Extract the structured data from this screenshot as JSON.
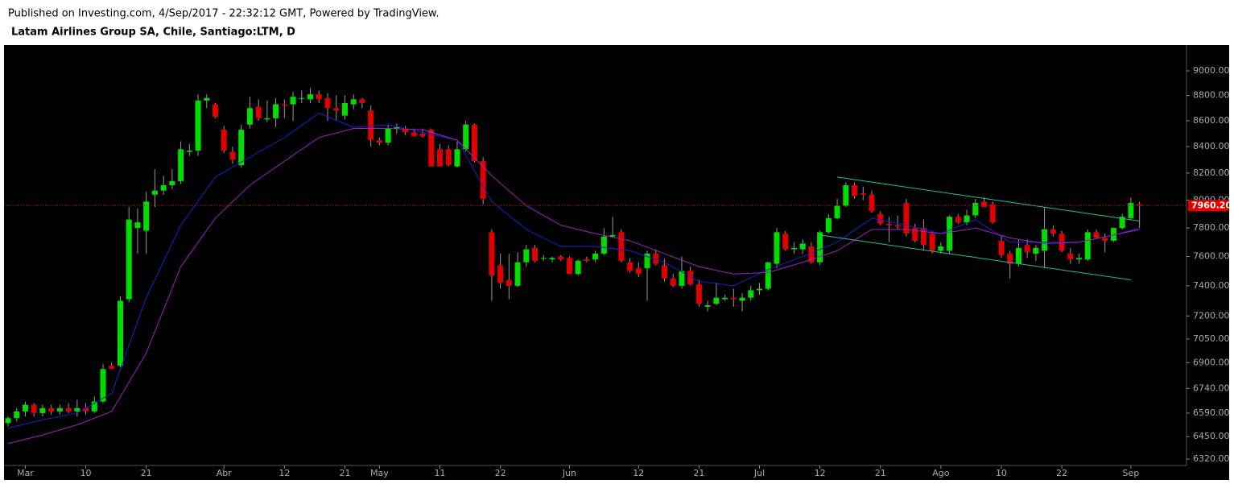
{
  "chart_data": {
    "type": "candlestick",
    "subtitle": "Published on Investing.com, 4/Sep/2017 - 22:32:12 GMT, Powered by TradingView.",
    "title": "Latam Airlines Group SA, Chile, Santiago:LTM, D",
    "log_scale": true,
    "up_color": "#00dd00",
    "down_color": "#e00000",
    "ylim": [
      6283,
      9207
    ],
    "yticks": [
      {
        "value": 9000,
        "label": "9000.00"
      },
      {
        "value": 8800,
        "label": "8800.00"
      },
      {
        "value": 8600,
        "label": "8600.00"
      },
      {
        "value": 8400,
        "label": "8400.00"
      },
      {
        "value": 8200,
        "label": "8200.00"
      },
      {
        "value": 8000,
        "label": "8000.00"
      },
      {
        "value": 7800,
        "label": "7800.00"
      },
      {
        "value": 7600,
        "label": "7600.00"
      },
      {
        "value": 7400,
        "label": "7400.00"
      },
      {
        "value": 7200,
        "label": "7200.00"
      },
      {
        "value": 7050,
        "label": "7050.00"
      },
      {
        "value": 6900,
        "label": "6900.00"
      },
      {
        "value": 6740,
        "label": "6740.00"
      },
      {
        "value": 6590,
        "label": "6590.00"
      },
      {
        "value": 6450,
        "label": "6450.00"
      },
      {
        "value": 6320,
        "label": "6320.00"
      }
    ],
    "categories": [
      null,
      null,
      "Mar",
      null,
      null,
      null,
      null,
      null,
      null,
      "10",
      null,
      null,
      null,
      null,
      null,
      null,
      "21",
      null,
      null,
      null,
      null,
      null,
      null,
      null,
      null,
      "Abr",
      null,
      null,
      null,
      null,
      null,
      null,
      "12",
      null,
      null,
      null,
      null,
      null,
      null,
      "21",
      null,
      null,
      null,
      "May",
      null,
      null,
      null,
      null,
      null,
      null,
      "11",
      null,
      null,
      null,
      null,
      null,
      null,
      "22",
      null,
      null,
      null,
      null,
      null,
      null,
      null,
      "Jun",
      null,
      null,
      null,
      null,
      null,
      null,
      null,
      "12",
      null,
      null,
      null,
      null,
      null,
      null,
      "21",
      null,
      null,
      null,
      null,
      null,
      null,
      "Jul",
      null,
      null,
      null,
      null,
      null,
      null,
      "12",
      null,
      null,
      null,
      null,
      null,
      null,
      "21",
      null,
      null,
      null,
      null,
      null,
      null,
      "Ago",
      null,
      null,
      null,
      null,
      null,
      null,
      "10",
      null,
      null,
      null,
      null,
      null,
      null,
      "22",
      null,
      null,
      null,
      null,
      null,
      null,
      null,
      "Sep",
      null
    ],
    "candles": [
      [
        6530,
        6570,
        6510,
        6560
      ],
      [
        6560,
        6620,
        6540,
        6600
      ],
      [
        6600,
        6660,
        6570,
        6640
      ],
      [
        6640,
        6650,
        6570,
        6590
      ],
      [
        6590,
        6640,
        6570,
        6620
      ],
      [
        6620,
        6640,
        6580,
        6600
      ],
      [
        6600,
        6640,
        6580,
        6620
      ],
      [
        6620,
        6650,
        6590,
        6600
      ],
      [
        6600,
        6670,
        6570,
        6620
      ],
      [
        6620,
        6650,
        6580,
        6600
      ],
      [
        6600,
        6690,
        6590,
        6660
      ],
      [
        6660,
        6890,
        6650,
        6860
      ],
      [
        6880,
        6900,
        6860,
        6860
      ],
      [
        6880,
        7330,
        6870,
        7300
      ],
      [
        7310,
        7950,
        7290,
        7860
      ],
      [
        7800,
        7940,
        7620,
        7840
      ],
      [
        7780,
        8060,
        7620,
        7990
      ],
      [
        8040,
        8230,
        7950,
        8070
      ],
      [
        8070,
        8180,
        8040,
        8110
      ],
      [
        8110,
        8230,
        8080,
        8140
      ],
      [
        8140,
        8440,
        8120,
        8380
      ],
      [
        8360,
        8420,
        8330,
        8370
      ],
      [
        8370,
        8810,
        8330,
        8760
      ],
      [
        8760,
        8810,
        8700,
        8780
      ],
      [
        8730,
        8740,
        8620,
        8630
      ],
      [
        8530,
        8560,
        8350,
        8370
      ],
      [
        8360,
        8400,
        8270,
        8300
      ],
      [
        8260,
        8570,
        8240,
        8530
      ],
      [
        8570,
        8790,
        8540,
        8700
      ],
      [
        8710,
        8770,
        8600,
        8620
      ],
      [
        8610,
        8760,
        8590,
        8620
      ],
      [
        8620,
        8780,
        8550,
        8730
      ],
      [
        8730,
        8770,
        8620,
        8720
      ],
      [
        8730,
        8830,
        8600,
        8790
      ],
      [
        8780,
        8840,
        8740,
        8780
      ],
      [
        8770,
        8860,
        8740,
        8810
      ],
      [
        8810,
        8840,
        8740,
        8770
      ],
      [
        8780,
        8820,
        8600,
        8700
      ],
      [
        8700,
        8800,
        8600,
        8680
      ],
      [
        8640,
        8800,
        8610,
        8740
      ],
      [
        8730,
        8810,
        8690,
        8770
      ],
      [
        8770,
        8780,
        8700,
        8740
      ],
      [
        8680,
        8720,
        8400,
        8450
      ],
      [
        8450,
        8470,
        8410,
        8430
      ],
      [
        8430,
        8570,
        8410,
        8540
      ],
      [
        8540,
        8580,
        8500,
        8550
      ],
      [
        8540,
        8560,
        8490,
        8510
      ],
      [
        8510,
        8540,
        8480,
        8480
      ],
      [
        8500,
        8540,
        8470,
        8480
      ],
      [
        8530,
        8540,
        8250,
        8250
      ],
      [
        8380,
        8420,
        8250,
        8250
      ],
      [
        8380,
        8410,
        8250,
        8260
      ],
      [
        8250,
        8440,
        8240,
        8380
      ],
      [
        8380,
        8600,
        8360,
        8570
      ],
      [
        8570,
        8580,
        8280,
        8290
      ],
      [
        8290,
        8320,
        7970,
        8010
      ],
      [
        7770,
        7790,
        7300,
        7470
      ],
      [
        7540,
        7620,
        7380,
        7420
      ],
      [
        7440,
        7620,
        7310,
        7400
      ],
      [
        7400,
        7630,
        7390,
        7560
      ],
      [
        7560,
        7680,
        7530,
        7650
      ],
      [
        7660,
        7680,
        7560,
        7570
      ],
      [
        7590,
        7610,
        7570,
        7590
      ],
      [
        7580,
        7600,
        7560,
        7590
      ],
      [
        7600,
        7610,
        7570,
        7580
      ],
      [
        7590,
        7600,
        7480,
        7480
      ],
      [
        7480,
        7580,
        7470,
        7570
      ],
      [
        7580,
        7600,
        7560,
        7570
      ],
      [
        7580,
        7640,
        7560,
        7620
      ],
      [
        7620,
        7800,
        7610,
        7740
      ],
      [
        7740,
        7880,
        7730,
        7750
      ],
      [
        7770,
        7790,
        7560,
        7570
      ],
      [
        7560,
        7590,
        7490,
        7500
      ],
      [
        7520,
        7560,
        7460,
        7480
      ],
      [
        7520,
        7640,
        7300,
        7620
      ],
      [
        7620,
        7650,
        7540,
        7550
      ],
      [
        7540,
        7580,
        7430,
        7450
      ],
      [
        7450,
        7480,
        7390,
        7400
      ],
      [
        7400,
        7600,
        7380,
        7500
      ],
      [
        7500,
        7530,
        7400,
        7410
      ],
      [
        7410,
        7440,
        7260,
        7280
      ],
      [
        7260,
        7300,
        7230,
        7270
      ],
      [
        7280,
        7420,
        7270,
        7320
      ],
      [
        7310,
        7340,
        7300,
        7320
      ],
      [
        7320,
        7380,
        7260,
        7310
      ],
      [
        7300,
        7350,
        7230,
        7320
      ],
      [
        7320,
        7400,
        7300,
        7370
      ],
      [
        7370,
        7420,
        7340,
        7380
      ],
      [
        7380,
        7560,
        7370,
        7560
      ],
      [
        7550,
        7800,
        7520,
        7770
      ],
      [
        7760,
        7780,
        7640,
        7650
      ],
      [
        7650,
        7700,
        7620,
        7660
      ],
      [
        7650,
        7720,
        7620,
        7690
      ],
      [
        7670,
        7700,
        7550,
        7560
      ],
      [
        7560,
        7780,
        7540,
        7770
      ],
      [
        7770,
        7900,
        7760,
        7870
      ],
      [
        7870,
        8010,
        7860,
        7960
      ],
      [
        7960,
        8130,
        7950,
        8110
      ],
      [
        8110,
        8130,
        8010,
        8030
      ],
      [
        8050,
        8100,
        8000,
        8040
      ],
      [
        8040,
        8070,
        7910,
        7920
      ],
      [
        7900,
        7920,
        7820,
        7830
      ],
      [
        7830,
        7880,
        7700,
        7820
      ],
      [
        7820,
        7890,
        7790,
        7810
      ],
      [
        7980,
        8010,
        7740,
        7760
      ],
      [
        7800,
        7830,
        7700,
        7710
      ],
      [
        7800,
        7860,
        7640,
        7680
      ],
      [
        7760,
        7780,
        7620,
        7640
      ],
      [
        7640,
        7700,
        7620,
        7670
      ],
      [
        7640,
        7890,
        7620,
        7880
      ],
      [
        7880,
        7900,
        7830,
        7840
      ],
      [
        7840,
        7930,
        7820,
        7890
      ],
      [
        7890,
        8010,
        7870,
        7980
      ],
      [
        7990,
        8020,
        7950,
        7950
      ],
      [
        7970,
        7990,
        7830,
        7840
      ],
      [
        7710,
        7750,
        7590,
        7610
      ],
      [
        7620,
        7640,
        7450,
        7550
      ],
      [
        7550,
        7720,
        7530,
        7660
      ],
      [
        7680,
        7720,
        7590,
        7630
      ],
      [
        7620,
        7680,
        7570,
        7660
      ],
      [
        7640,
        7950,
        7520,
        7790
      ],
      [
        7790,
        7820,
        7740,
        7760
      ],
      [
        7760,
        7780,
        7630,
        7640
      ],
      [
        7620,
        7660,
        7550,
        7580
      ],
      [
        7580,
        7620,
        7550,
        7590
      ],
      [
        7580,
        7790,
        7570,
        7770
      ],
      [
        7770,
        7790,
        7720,
        7730
      ],
      [
        7730,
        7760,
        7630,
        7710
      ],
      [
        7710,
        7800,
        7700,
        7800
      ],
      [
        7800,
        7900,
        7790,
        7880
      ],
      [
        7870,
        8020,
        7860,
        7980
      ],
      [
        7970,
        7990,
        7800,
        7960.2
      ]
    ],
    "ma": [
      {
        "color": "#2020d0",
        "x": [
          0,
          4,
          8,
          12,
          16,
          20,
          24,
          28,
          32,
          36,
          40,
          44,
          48,
          52,
          56,
          60,
          64,
          68,
          72,
          76,
          80,
          84,
          88,
          92,
          96,
          100,
          104,
          108,
          112,
          116,
          120,
          124,
          128,
          131
        ],
        "values": [
          6500,
          6550,
          6590,
          6710,
          7320,
          7820,
          8170,
          8320,
          8470,
          8660,
          8550,
          8570,
          8510,
          8450,
          7990,
          7790,
          7670,
          7670,
          7640,
          7560,
          7430,
          7400,
          7510,
          7600,
          7700,
          7870,
          7820,
          7760,
          7860,
          7700,
          7700,
          7700,
          7750,
          7800
        ]
      },
      {
        "color": "#a020c0",
        "x": [
          0,
          4,
          8,
          12,
          16,
          20,
          24,
          28,
          32,
          36,
          40,
          44,
          48,
          52,
          56,
          60,
          64,
          68,
          72,
          76,
          80,
          84,
          88,
          92,
          96,
          100,
          104,
          108,
          112,
          116,
          120,
          124,
          128,
          131
        ],
        "values": [
          6410,
          6460,
          6520,
          6600,
          6960,
          7530,
          7870,
          8110,
          8290,
          8470,
          8540,
          8540,
          8530,
          8450,
          8180,
          7960,
          7820,
          7760,
          7710,
          7620,
          7530,
          7480,
          7490,
          7560,
          7640,
          7790,
          7790,
          7760,
          7800,
          7730,
          7690,
          7700,
          7750,
          7790
        ]
      }
    ],
    "channel": [
      {
        "color": "#20c0a0",
        "x": [
          96,
          131
        ],
        "values": [
          8170,
          7850
        ]
      },
      {
        "color": "#20c0a0",
        "x": [
          94,
          130
        ],
        "values": [
          7750,
          7440
        ]
      }
    ],
    "last_price": {
      "value": 7960.2,
      "label": "7960.20",
      "color": "#e00000"
    }
  }
}
